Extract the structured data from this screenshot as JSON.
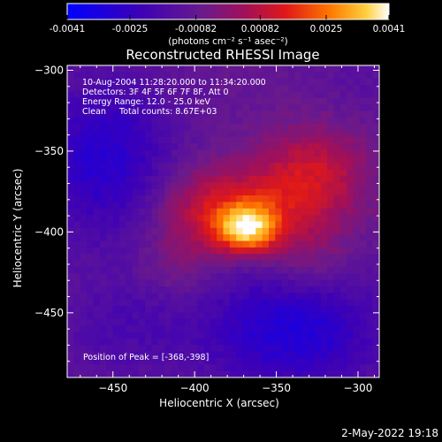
{
  "colorbar": {
    "ticks": [
      "-0.0041",
      "-0.0025",
      "-0.00082",
      "0.00082",
      "0.0025",
      "0.0041"
    ],
    "tick_values": [
      -0.0041,
      -0.0025,
      -0.00082,
      0.00082,
      0.0025,
      0.0041
    ],
    "range": [
      -0.0041,
      0.0041
    ],
    "units_label": "(photons cm⁻² s⁻¹ asec⁻²)"
  },
  "chart_data": {
    "type": "heatmap",
    "title": "Reconstructed RHESSI Image",
    "xlabel": "Heliocentric X (arcsec)",
    "ylabel": "Heliocentric Y (arcsec)",
    "xlim": [
      -478,
      -287
    ],
    "ylim": [
      -490,
      -297
    ],
    "x_ticks": [
      -450,
      -400,
      -350,
      -300
    ],
    "y_ticks": [
      -300,
      -350,
      -400,
      -450
    ],
    "x_tick_labels": [
      "−450",
      "−400",
      "−350",
      "−300"
    ],
    "y_tick_labels": [
      "−300",
      "−350",
      "−400",
      "−450"
    ],
    "annotations": [
      "10-Aug-2004 11:28:20.000 to 11:34:20.000",
      "Detectors: 3F 4F 5F 6F 7F 8F, Att 0",
      "Energy Range: 12.0 - 25.0 keV",
      "Clean     Total counts: 8.67E+03"
    ],
    "peak_label": "Position of Peak = [-368,-398]",
    "peak": [
      -368,
      -398
    ],
    "flux_range": [
      -0.0041,
      0.0041
    ],
    "sources": [
      {
        "x": -368,
        "y": -398,
        "amp": 0.0041,
        "sx": 14,
        "sy": 11
      },
      {
        "x": -395,
        "y": -385,
        "amp": 0.0018,
        "sx": 22,
        "sy": 18
      },
      {
        "x": -345,
        "y": -375,
        "amp": 0.0016,
        "sx": 25,
        "sy": 20
      },
      {
        "x": -320,
        "y": -360,
        "amp": 0.0012,
        "sx": 22,
        "sy": 22
      },
      {
        "x": -330,
        "y": -415,
        "amp": 0.001,
        "sx": 18,
        "sy": 18
      },
      {
        "x": -410,
        "y": -420,
        "amp": 0.0008,
        "sx": 16,
        "sy": 14
      },
      {
        "x": -455,
        "y": -355,
        "amp": -0.002,
        "sx": 30,
        "sy": 35
      },
      {
        "x": -340,
        "y": -460,
        "amp": -0.0022,
        "sx": 40,
        "sy": 28
      },
      {
        "x": -445,
        "y": -460,
        "amp": -0.0008,
        "sx": 30,
        "sy": 25
      },
      {
        "x": -300,
        "y": -310,
        "amp": -0.0004,
        "sx": 20,
        "sy": 20
      }
    ]
  },
  "footer": {
    "timestamp": "2-May-2022 19:18"
  }
}
